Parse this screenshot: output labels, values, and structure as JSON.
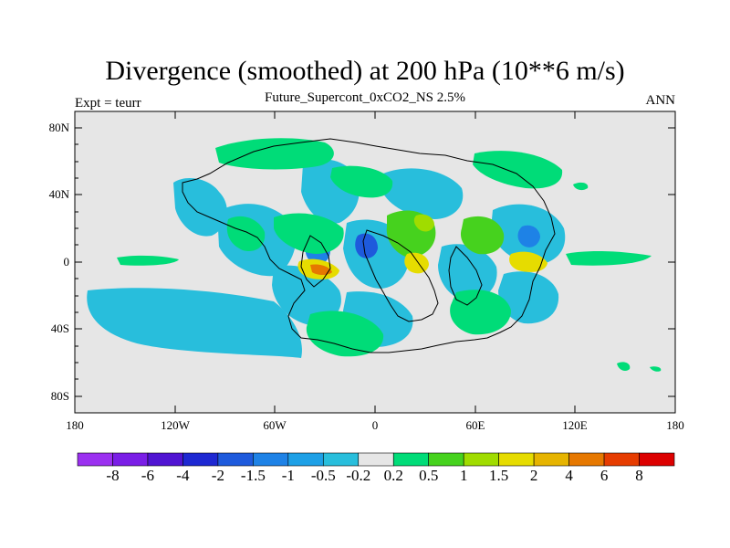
{
  "header": {
    "title": "Divergence (smoothed) at 200 hPa (10**6 m/s)",
    "subtitle": "Future_Supercont_0xCO2_NS 2.5%",
    "left_label": "Expt = teurr",
    "right_label": "ANN"
  },
  "map": {
    "lat_ticks": [
      "80N",
      "40N",
      "0",
      "40S",
      "80S"
    ],
    "lon_ticks": [
      "180",
      "120W",
      "60W",
      "0",
      "60E",
      "120E",
      "180"
    ],
    "background_color": "#e6e6e6"
  },
  "colorbar": {
    "labels": [
      "-8",
      "-6",
      "-4",
      "-2",
      "-1.5",
      "-1",
      "-0.5",
      "-0.2",
      "0.2",
      "0.5",
      "1",
      "1.5",
      "2",
      "4",
      "6",
      "8"
    ],
    "colors": [
      "#9b30f0",
      "#7a1ee6",
      "#5014d2",
      "#1e28d2",
      "#1e5adc",
      "#1e82e6",
      "#1ea0e6",
      "#28bedc",
      "#e6e6e6",
      "#00dc78",
      "#46d21e",
      "#a0dc00",
      "#e6dc00",
      "#e6b400",
      "#e67800",
      "#e63c00",
      "#dc0000"
    ]
  }
}
